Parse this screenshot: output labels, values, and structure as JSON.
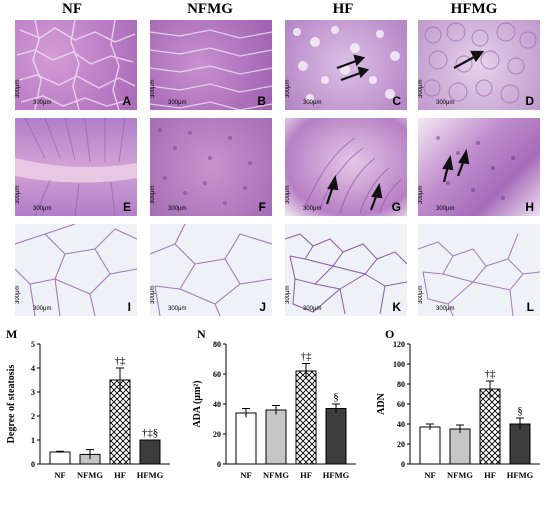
{
  "columns": [
    "NF",
    "NFMG",
    "HF",
    "HFMG"
  ],
  "scale_label": "300μm",
  "panels": [
    {
      "letter": "A"
    },
    {
      "letter": "B"
    },
    {
      "letter": "C"
    },
    {
      "letter": "D"
    },
    {
      "letter": "E"
    },
    {
      "letter": "F"
    },
    {
      "letter": "G"
    },
    {
      "letter": "H"
    },
    {
      "letter": "I"
    },
    {
      "letter": "J"
    },
    {
      "letter": "K"
    },
    {
      "letter": "L"
    }
  ],
  "colors": {
    "liver": "#b984c6",
    "liver_light": "#d7bde0",
    "gut": "#c592cf",
    "fat_bg": "#eef1f6",
    "fat_line": "#a37bb8"
  },
  "chart_data": [
    {
      "panel_letter": "M",
      "type": "bar",
      "categories": [
        "NF",
        "NFMG",
        "HF",
        "HFMG"
      ],
      "values": [
        0.5,
        0.4,
        3.5,
        1.0
      ],
      "errors": [
        0.03,
        0.2,
        0.5,
        0.0
      ],
      "annotations": [
        "",
        "",
        "†‡",
        "†‡§"
      ],
      "ylabel": "Degree of steatosis",
      "ylim": [
        0,
        5
      ],
      "yticks": [
        "0",
        "1",
        "2",
        "3",
        "4",
        "5"
      ]
    },
    {
      "panel_letter": "N",
      "type": "bar",
      "categories": [
        "NF",
        "NFMG",
        "HF",
        "HFMG"
      ],
      "values": [
        34,
        36,
        62,
        37
      ],
      "errors": [
        3,
        3,
        5,
        3
      ],
      "annotations": [
        "",
        "",
        "†‡",
        "§"
      ],
      "ylabel": "ADA (μm²)",
      "ylim": [
        0,
        80
      ],
      "yticks": [
        "0",
        "20",
        "40",
        "60",
        "80"
      ]
    },
    {
      "panel_letter": "O",
      "type": "bar",
      "categories": [
        "NF",
        "NFMG",
        "HF",
        "HFMG"
      ],
      "values": [
        37,
        35,
        75,
        40
      ],
      "errors": [
        3,
        4,
        8,
        6
      ],
      "annotations": [
        "",
        "",
        "†‡",
        "§"
      ],
      "ylabel": "ADN",
      "ylim": [
        0,
        120
      ],
      "yticks": [
        "0",
        "20",
        "40",
        "60",
        "80",
        "100",
        "120"
      ]
    }
  ]
}
